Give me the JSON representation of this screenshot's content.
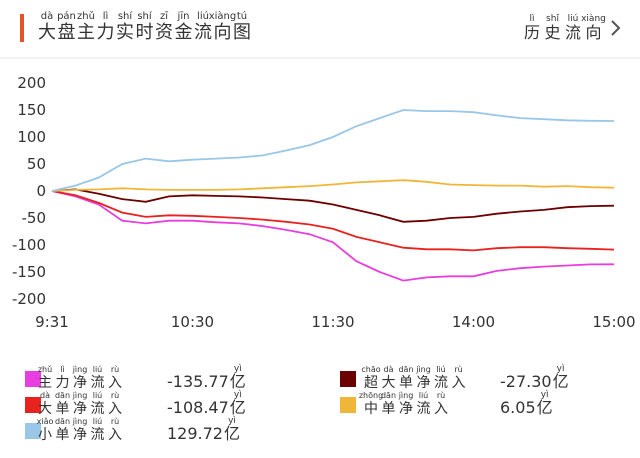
{
  "header": {
    "title": "大盘主力实时资金流向图",
    "title_pinyin": [
      "dà",
      "pán",
      "zhǔ",
      "lì",
      "shí",
      "shí",
      "zī",
      "jīn",
      "liú",
      "xiàng",
      "tú"
    ],
    "link": "历史流向",
    "link_pinyin": [
      "lì",
      "shǐ",
      "liú",
      "xiàng"
    ]
  },
  "chart_data": {
    "type": "line",
    "categories": [
      "9:31",
      null,
      null,
      null,
      null,
      null,
      "10:30",
      null,
      null,
      null,
      null,
      null,
      "11:30",
      null,
      null,
      null,
      null,
      null,
      "14:00",
      null,
      null,
      null,
      null,
      null,
      "15:00"
    ],
    "ylim": [
      -200,
      200
    ],
    "yticks": [
      -200,
      -150,
      -100,
      -50,
      0,
      50,
      100,
      150,
      200
    ],
    "grid": false,
    "series": [
      {
        "name": "主力净流入",
        "name_pinyin": [
          "zhǔ",
          "lì",
          "jìng",
          "liú",
          "rù"
        ],
        "color": "#e83ee0",
        "total": -135.77,
        "unit": "亿",
        "unit_pinyin": "yì",
        "values": [
          0,
          -10,
          -25,
          -55,
          -60,
          -55,
          -55,
          -58,
          -60,
          -65,
          -72,
          -80,
          -95,
          -130,
          -150,
          -166,
          -160,
          -158,
          -158,
          -148,
          -143,
          -140,
          -138,
          -136,
          -135.77
        ]
      },
      {
        "name": "超大单净流入",
        "name_pinyin": [
          "chāo",
          "dà",
          "dān",
          "jìng",
          "liú",
          "rù"
        ],
        "color": "#6b0000",
        "total": -27.3,
        "total_label": "-27.30",
        "unit": "亿",
        "unit_pinyin": "yì",
        "values": [
          0,
          3,
          -5,
          -15,
          -20,
          -10,
          -8,
          -9,
          -10,
          -12,
          -15,
          -18,
          -25,
          -35,
          -45,
          -57,
          -55,
          -50,
          -48,
          -42,
          -38,
          -35,
          -30,
          -28,
          -27.3
        ]
      },
      {
        "name": "大单净流入",
        "name_pinyin": [
          "dà",
          "dān",
          "jìng",
          "liú",
          "rù"
        ],
        "color": "#e8221f",
        "total": -108.47,
        "unit": "亿",
        "unit_pinyin": "yì",
        "values": [
          0,
          -8,
          -22,
          -40,
          -48,
          -45,
          -46,
          -48,
          -50,
          -53,
          -57,
          -62,
          -70,
          -85,
          -95,
          -105,
          -108,
          -108,
          -110,
          -106,
          -104,
          -104,
          -106,
          -107,
          -108.47
        ]
      },
      {
        "name": "中单净流入",
        "name_pinyin": [
          "zhōng",
          "dān",
          "jìng",
          "liú",
          "rù"
        ],
        "color": "#f0b63a",
        "total": 6.05,
        "unit": "亿",
        "unit_pinyin": "yì",
        "values": [
          0,
          2,
          3,
          5,
          3,
          2,
          2,
          2,
          3,
          5,
          7,
          9,
          12,
          16,
          18,
          20,
          17,
          12,
          11,
          10,
          10,
          8,
          9,
          7,
          6.05
        ]
      },
      {
        "name": "小单净流入",
        "name_pinyin": [
          "xiǎo",
          "dān",
          "jìng",
          "liú",
          "rù"
        ],
        "color": "#9ac6e8",
        "total": 129.72,
        "unit": "亿",
        "unit_pinyin": "yì",
        "values": [
          0,
          10,
          25,
          50,
          60,
          55,
          58,
          60,
          62,
          66,
          75,
          85,
          100,
          120,
          135,
          150,
          148,
          148,
          146,
          140,
          135,
          133,
          131,
          130,
          129.72
        ]
      }
    ]
  }
}
